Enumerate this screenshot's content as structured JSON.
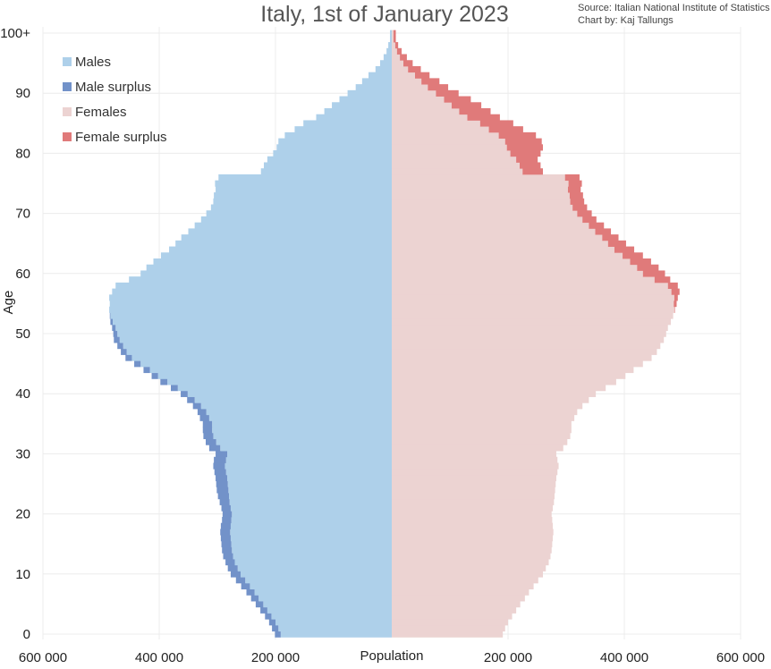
{
  "chart_data": {
    "type": "bar",
    "orientation": "horizontal-population-pyramid",
    "title": "Italy, 1st of January 2023",
    "source_line": "Source: Italian National Institute of Statistics",
    "credit_line": "Chart by: Kaj Tallungs",
    "xlabel": "Population",
    "ylabel": "Age",
    "xlim": [
      -600000,
      600000
    ],
    "x_ticks": [
      {
        "value": -600000,
        "label": "600 000"
      },
      {
        "value": -400000,
        "label": "400 000"
      },
      {
        "value": -200000,
        "label": "200 000"
      },
      {
        "value": 200000,
        "label": "200 000"
      },
      {
        "value": 400000,
        "label": "400 000"
      },
      {
        "value": 600000,
        "label": "600 000"
      }
    ],
    "y_ticks": [
      {
        "value": 0,
        "label": "0"
      },
      {
        "value": 10,
        "label": "10"
      },
      {
        "value": 20,
        "label": "20"
      },
      {
        "value": 30,
        "label": "30"
      },
      {
        "value": 40,
        "label": "40"
      },
      {
        "value": 50,
        "label": "50"
      },
      {
        "value": 60,
        "label": "60"
      },
      {
        "value": 70,
        "label": "70"
      },
      {
        "value": 80,
        "label": "80"
      },
      {
        "value": 90,
        "label": "90"
      },
      {
        "value": 100,
        "label": "100+"
      }
    ],
    "grid": true,
    "legend_position": "top-left",
    "legend": [
      {
        "name": "Males",
        "color": "#aed0ea"
      },
      {
        "name": "Male surplus",
        "color": "#7292c9"
      },
      {
        "name": "Females",
        "color": "#ecd3d2"
      },
      {
        "name": "Female surplus",
        "color": "#e07a7a"
      }
    ],
    "ages": [
      0,
      1,
      2,
      3,
      4,
      5,
      6,
      7,
      8,
      9,
      10,
      11,
      12,
      13,
      14,
      15,
      16,
      17,
      18,
      19,
      20,
      21,
      22,
      23,
      24,
      25,
      26,
      27,
      28,
      29,
      30,
      31,
      32,
      33,
      34,
      35,
      36,
      37,
      38,
      39,
      40,
      41,
      42,
      43,
      44,
      45,
      46,
      47,
      48,
      49,
      50,
      51,
      52,
      53,
      54,
      55,
      56,
      57,
      58,
      59,
      60,
      61,
      62,
      63,
      64,
      65,
      66,
      67,
      68,
      69,
      70,
      71,
      72,
      73,
      74,
      75,
      76,
      77,
      78,
      79,
      80,
      81,
      82,
      83,
      84,
      85,
      86,
      87,
      88,
      89,
      90,
      91,
      92,
      93,
      94,
      95,
      96,
      97,
      98,
      99,
      100
    ],
    "series": [
      {
        "name": "Males",
        "values": [
          201000,
          206000,
          211000,
          218000,
          226000,
          234000,
          242000,
          250000,
          259000,
          268000,
          277000,
          282000,
          286000,
          290000,
          292000,
          293000,
          294000,
          295000,
          294000,
          292000,
          291000,
          293000,
          296000,
          299000,
          301000,
          302000,
          303000,
          305000,
          307000,
          306000,
          303000,
          314000,
          320000,
          324000,
          325000,
          325000,
          330000,
          334000,
          342000,
          352000,
          363000,
          380000,
          398000,
          413000,
          427000,
          443000,
          458000,
          466000,
          472000,
          478000,
          479000,
          481000,
          484000,
          485000,
          486000,
          485000,
          486000,
          481000,
          475000,
          452000,
          432000,
          422000,
          410000,
          397000,
          383000,
          372000,
          362000,
          350000,
          339000,
          328000,
          319000,
          311000,
          307000,
          306000,
          303000,
          304000,
          298000,
          225000,
          220000,
          214000,
          204000,
          198000,
          195000,
          184000,
          167000,
          152000,
          130000,
          116000,
          103000,
          90000,
          76000,
          62000,
          51000,
          40000,
          28000,
          20000,
          14000,
          9000,
          6000,
          3000,
          3000
        ]
      },
      {
        "name": "Females",
        "values": [
          191000,
          195000,
          200000,
          207000,
          214000,
          221000,
          229000,
          236000,
          244000,
          252000,
          260000,
          265000,
          270000,
          273000,
          275000,
          276000,
          277000,
          278000,
          277000,
          276000,
          275000,
          277000,
          279000,
          280000,
          281000,
          282000,
          283000,
          285000,
          287000,
          285000,
          283000,
          295000,
          302000,
          307000,
          309000,
          309000,
          314000,
          319000,
          328000,
          339000,
          351000,
          368000,
          386000,
          402000,
          416000,
          432000,
          447000,
          456000,
          462000,
          468000,
          472000,
          475000,
          480000,
          484000,
          487000,
          490000,
          492000,
          495000,
          492000,
          479000,
          470000,
          459000,
          446000,
          432000,
          417000,
          403000,
          390000,
          377000,
          365000,
          352000,
          344000,
          336000,
          331000,
          329000,
          325000,
          327000,
          323000,
          260000,
          256000,
          251000,
          256000,
          260000,
          258000,
          248000,
          226000,
          209000,
          186000,
          170000,
          154000,
          136000,
          115000,
          97000,
          82000,
          65000,
          50000,
          36000,
          26000,
          17000,
          11000,
          7000,
          7000
        ]
      }
    ]
  }
}
